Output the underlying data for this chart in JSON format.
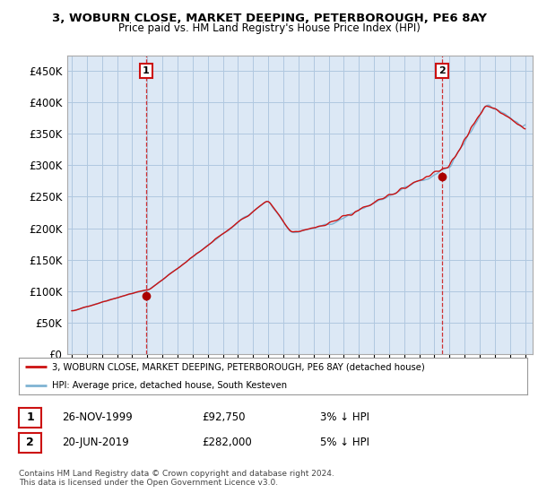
{
  "title": "3, WOBURN CLOSE, MARKET DEEPING, PETERBOROUGH, PE6 8AY",
  "subtitle": "Price paid vs. HM Land Registry's House Price Index (HPI)",
  "ytick_values": [
    0,
    50000,
    100000,
    150000,
    200000,
    250000,
    300000,
    350000,
    400000,
    450000
  ],
  "ylim": [
    0,
    475000
  ],
  "hpi_color": "#7fb3d3",
  "price_color": "#cc1111",
  "marker_color": "#aa0000",
  "annotation_box_color": "#cc1111",
  "background_color": "#ffffff",
  "chart_bg_color": "#dce8f5",
  "grid_color": "#b0c8e0",
  "legend_label_red": "3, WOBURN CLOSE, MARKET DEEPING, PETERBOROUGH, PE6 8AY (detached house)",
  "legend_label_blue": "HPI: Average price, detached house, South Kesteven",
  "transaction1_date": "26-NOV-1999",
  "transaction1_price": "£92,750",
  "transaction1_hpi": "3% ↓ HPI",
  "transaction2_date": "20-JUN-2019",
  "transaction2_price": "£282,000",
  "transaction2_hpi": "5% ↓ HPI",
  "footer": "Contains HM Land Registry data © Crown copyright and database right 2024.\nThis data is licensed under the Open Government Licence v3.0."
}
